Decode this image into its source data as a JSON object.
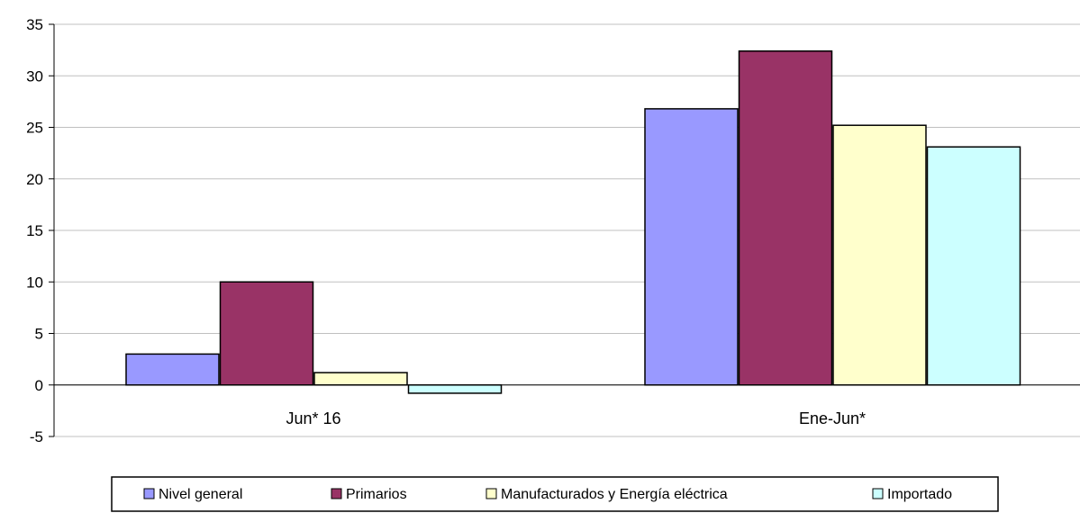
{
  "chart_data": {
    "type": "bar",
    "title": "",
    "xlabel": "",
    "ylabel": "",
    "categories": [
      "Jun* 16",
      "Ene-Jun*"
    ],
    "series": [
      {
        "name": "Nivel general",
        "values": [
          3.0,
          26.8
        ],
        "color": "#9999ff"
      },
      {
        "name": "Primarios",
        "values": [
          10.0,
          32.4
        ],
        "color": "#993366"
      },
      {
        "name": "Manufacturados y Energía eléctrica",
        "values": [
          1.2,
          25.2
        ],
        "color": "#ffffcc"
      },
      {
        "name": "Importado",
        "values": [
          -0.8,
          23.1
        ],
        "color": "#ccffff"
      }
    ],
    "ylim": [
      -5,
      35
    ],
    "yticks": [
      35,
      30,
      25,
      20,
      15,
      10,
      5,
      0,
      -5
    ],
    "grid": true,
    "legend_position": "bottom"
  }
}
